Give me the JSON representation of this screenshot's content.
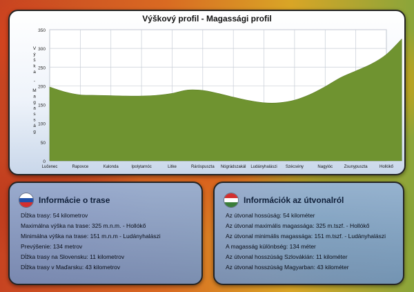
{
  "chart_data": {
    "type": "area",
    "title": "Výškový profil - Magassági profil",
    "ylabel_sk": "Výška",
    "ylabel_sep": "-",
    "ylabel_hu": "Magasság",
    "ylim": [
      0,
      350
    ],
    "yticks": [
      0,
      50,
      100,
      150,
      200,
      250,
      300,
      350
    ],
    "grid": true,
    "categories": [
      "Lučenec",
      "Rapovce",
      "Kalonda",
      "Ipolytarnóc",
      "Litke",
      "Ráróspuszta",
      "Nógrádszakál",
      "Ludányhalászi",
      "Szécsény",
      "Nagylóc",
      "Zsunypuszta",
      "Hollókő"
    ],
    "x": [
      0,
      0.5,
      1,
      1.5,
      2,
      2.5,
      3,
      3.5,
      4,
      4.5,
      5,
      5.5,
      6,
      6.5,
      7,
      7.5,
      8,
      8.5,
      9,
      9.5,
      10,
      10.5,
      11,
      11.5
    ],
    "values": [
      197,
      184,
      176,
      175,
      174,
      173,
      173,
      175,
      180,
      189,
      188,
      180,
      170,
      161,
      155,
      155,
      162,
      177,
      198,
      222,
      240,
      258,
      284,
      325
    ],
    "fill_color": "#6f9330",
    "grid_color": "#c7cdd6"
  },
  "panels": {
    "sk": {
      "title": "Informácie o trase",
      "flag": [
        "#ffffff",
        "#1f4fa8",
        "#d32f2f"
      ],
      "lines": [
        "Dĺžka trasy: 54 kilometrov",
        "Maximálna výška na trase: 325 m.n.m. - Hollókő",
        "Minimálna výška na trase: 151 m.n.m - Ludányhalászi",
        "Prevýšenie: 134 metrov",
        "Dĺžka trasy na Slovensku: 11 kilometrov",
        "Dĺžka trasy v Maďarsku: 43 kilometrov"
      ]
    },
    "hu": {
      "title": "Információk az útvonalról",
      "flag": [
        "#d32f2f",
        "#ffffff",
        "#3a7d3a"
      ],
      "lines": [
        "Az útvonal hossúság: 54 kilométer",
        "Az útvonal maximális magassága: 325 m.tszf. - Hollókő",
        "Az útvonal minimális magassága: 151 m.tszf. - Ludányhalászi",
        "A magasság különbség: 134 méter",
        "Az útvonal hosszúság Szlovákián: 11 kilométer",
        "Az útvonal hosszúság Magyarban: 43 kilométer"
      ]
    }
  }
}
